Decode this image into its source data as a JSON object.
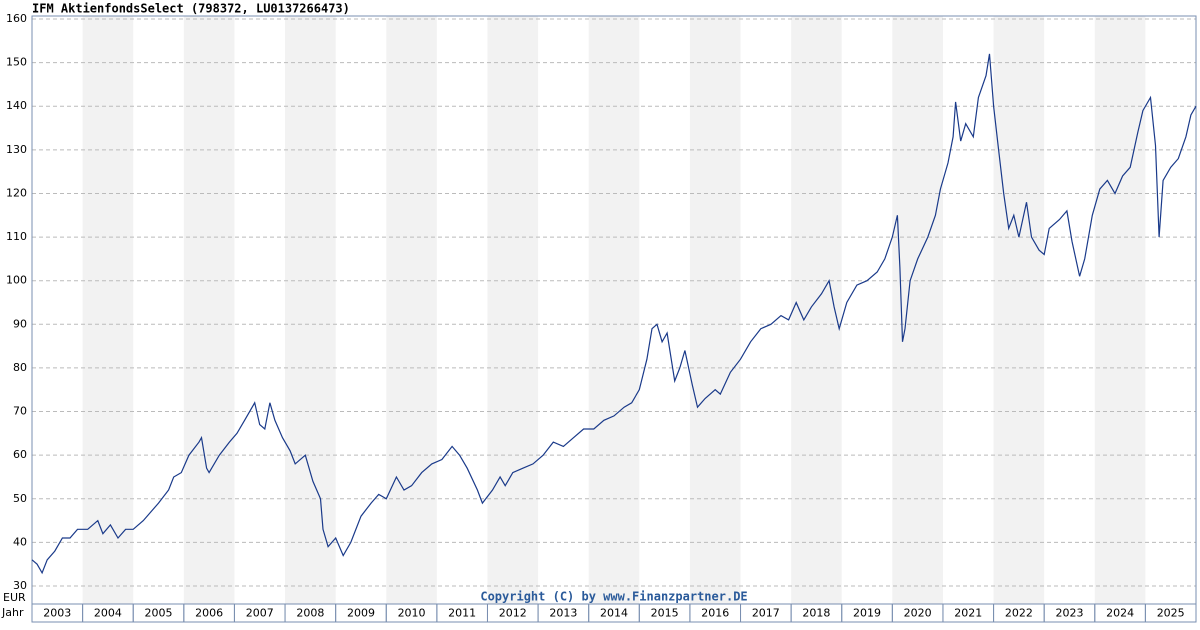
{
  "chart_data": {
    "type": "line",
    "title": "IFM AktienfondsSelect (798372, LU0137266473)",
    "y_unit": "EUR",
    "x_label": "Jahr",
    "copyright": "Copyright (C) by www.Finanzpartner.DE",
    "xlim": [
      2003,
      2026
    ],
    "xticks": [
      2003,
      2004,
      2005,
      2006,
      2007,
      2008,
      2009,
      2010,
      2011,
      2012,
      2013,
      2014,
      2015,
      2016,
      2017,
      2018,
      2019,
      2020,
      2021,
      2022,
      2023,
      2024,
      2025
    ],
    "ylim": [
      30,
      160
    ],
    "yticks": [
      30,
      40,
      50,
      60,
      70,
      80,
      90,
      100,
      110,
      120,
      130,
      140,
      150,
      160
    ],
    "grid": true,
    "series": [
      {
        "name": "IFM AktienfondsSelect",
        "color": "#1a3a8a",
        "x": [
          2003.0,
          2003.1,
          2003.2,
          2003.3,
          2003.45,
          2003.6,
          2003.75,
          2003.9,
          2004.1,
          2004.3,
          2004.4,
          2004.55,
          2004.7,
          2004.85,
          2005.0,
          2005.2,
          2005.5,
          2005.7,
          2005.8,
          2005.95,
          2006.1,
          2006.3,
          2006.35,
          2006.45,
          2006.5,
          2006.7,
          2006.9,
          2007.05,
          2007.2,
          2007.4,
          2007.5,
          2007.6,
          2007.7,
          2007.8,
          2007.95,
          2008.1,
          2008.2,
          2008.4,
          2008.55,
          2008.7,
          2008.75,
          2008.85,
          2009.0,
          2009.15,
          2009.3,
          2009.5,
          2009.7,
          2009.85,
          2010.0,
          2010.2,
          2010.35,
          2010.5,
          2010.7,
          2010.9,
          2011.1,
          2011.3,
          2011.45,
          2011.6,
          2011.8,
          2011.9,
          2012.1,
          2012.25,
          2012.35,
          2012.5,
          2012.7,
          2012.9,
          2013.1,
          2013.3,
          2013.5,
          2013.7,
          2013.9,
          2014.1,
          2014.3,
          2014.5,
          2014.7,
          2014.85,
          2015.0,
          2015.15,
          2015.25,
          2015.35,
          2015.45,
          2015.55,
          2015.7,
          2015.8,
          2015.9,
          2016.05,
          2016.15,
          2016.3,
          2016.5,
          2016.6,
          2016.8,
          2017.0,
          2017.2,
          2017.4,
          2017.6,
          2017.8,
          2017.95,
          2018.1,
          2018.25,
          2018.4,
          2018.6,
          2018.75,
          2018.85,
          2018.95,
          2019.1,
          2019.3,
          2019.5,
          2019.7,
          2019.85,
          2020.0,
          2020.1,
          2020.15,
          2020.2,
          2020.25,
          2020.35,
          2020.5,
          2020.7,
          2020.85,
          2020.95,
          2021.1,
          2021.2,
          2021.25,
          2021.35,
          2021.45,
          2021.6,
          2021.7,
          2021.85,
          2021.92,
          2022.0,
          2022.1,
          2022.2,
          2022.3,
          2022.4,
          2022.5,
          2022.65,
          2022.75,
          2022.9,
          2023.0,
          2023.1,
          2023.3,
          2023.45,
          2023.55,
          2023.7,
          2023.8,
          2023.95,
          2024.1,
          2024.25,
          2024.4,
          2024.55,
          2024.7,
          2024.85,
          2024.95,
          2025.1,
          2025.2,
          2025.27,
          2025.35,
          2025.5,
          2025.65,
          2025.8,
          2025.9,
          2026.0
        ],
        "values": [
          36,
          35,
          33,
          36,
          38,
          41,
          41,
          43,
          43,
          45,
          42,
          44,
          41,
          43,
          43,
          45,
          49,
          52,
          55,
          56,
          60,
          63,
          64,
          57,
          56,
          60,
          63,
          65,
          68,
          72,
          67,
          66,
          72,
          68,
          64,
          61,
          58,
          60,
          54,
          50,
          43,
          39,
          41,
          37,
          40,
          46,
          49,
          51,
          50,
          55,
          52,
          53,
          56,
          58,
          59,
          62,
          60,
          57,
          52,
          49,
          52,
          55,
          53,
          56,
          57,
          58,
          60,
          63,
          62,
          64,
          66,
          66,
          68,
          69,
          71,
          72,
          75,
          82,
          89,
          90,
          86,
          88,
          77,
          80,
          84,
          76,
          71,
          73,
          75,
          74,
          79,
          82,
          86,
          89,
          90,
          92,
          91,
          95,
          91,
          94,
          97,
          100,
          94,
          89,
          95,
          99,
          100,
          102,
          105,
          110,
          115,
          103,
          86,
          89,
          100,
          105,
          110,
          115,
          121,
          127,
          133,
          141,
          132,
          136,
          133,
          142,
          147,
          152,
          140,
          130,
          120,
          112,
          115,
          110,
          118,
          110,
          107,
          106,
          112,
          114,
          116,
          109,
          101,
          105,
          115,
          121,
          123,
          120,
          124,
          126,
          134,
          139,
          142,
          131,
          110,
          123,
          126,
          128,
          133,
          138,
          140
        ]
      }
    ]
  }
}
